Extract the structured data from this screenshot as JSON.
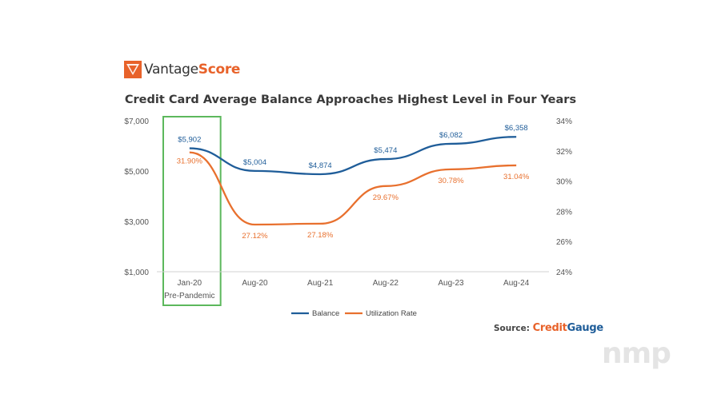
{
  "logo": {
    "prefix": "Vantage",
    "suffix": "Score"
  },
  "colors": {
    "balance": "#1f5d99",
    "utilization": "#e8702e",
    "highlight": "#5cb85c",
    "logo": "#e8622a"
  },
  "source": {
    "label": "Source:",
    "brand_part1": "Credit",
    "brand_part2": "Gauge"
  },
  "watermark": "nmp",
  "chart_data": {
    "type": "line",
    "title": "Credit Card Average Balance Approaches Highest Level in Four Years",
    "categories": [
      "Jan-20",
      "Aug-20",
      "Aug-21",
      "Aug-22",
      "Aug-23",
      "Aug-24"
    ],
    "category_sublabels": [
      "Pre-Pandemic",
      "",
      "",
      "",
      "",
      ""
    ],
    "highlighted_category": "Jan-20",
    "left_axis": {
      "ticks": [
        "$1,000",
        "$3,000",
        "$5,000",
        "$7,000"
      ],
      "min": 1000,
      "max": 7000
    },
    "right_axis": {
      "ticks": [
        "24%",
        "26%",
        "28%",
        "30%",
        "32%",
        "34%"
      ],
      "min": 24,
      "max": 34
    },
    "series": [
      {
        "name": "Balance",
        "axis": "left",
        "color": "#1f5d99",
        "values": [
          5902,
          5004,
          4874,
          5474,
          6082,
          6358
        ],
        "labels": [
          "$5,902",
          "$5,004",
          "$4,874",
          "$5,474",
          "$6,082",
          "$6,358"
        ]
      },
      {
        "name": "Utilization Rate",
        "axis": "right",
        "color": "#e8702e",
        "values": [
          31.9,
          27.12,
          27.18,
          29.67,
          30.78,
          31.04
        ],
        "labels": [
          "31.90%",
          "27.12%",
          "27.18%",
          "29.67%",
          "30.78%",
          "31.04%"
        ]
      }
    ],
    "legend": "bottom-center",
    "grid": false
  }
}
